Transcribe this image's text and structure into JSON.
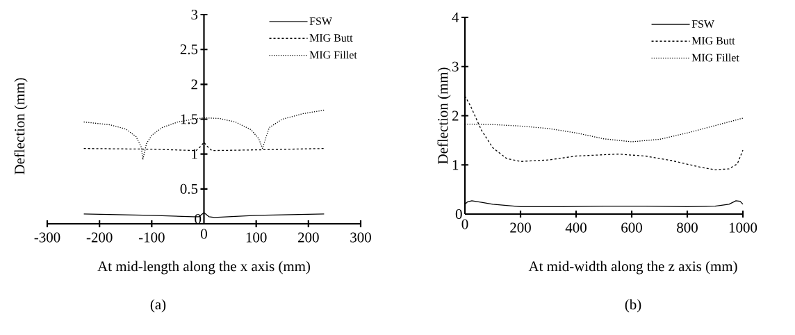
{
  "chart_data": [
    {
      "type": "line",
      "xlabel": "At mid-length along the x axis (mm)",
      "ylabel": "Deflection (mm)",
      "annotations": [
        "(a)"
      ],
      "xlim": [
        -300,
        300
      ],
      "xticks": [
        -300,
        -200,
        -100,
        0,
        100,
        200,
        300
      ],
      "ylim": [
        0,
        3
      ],
      "yticks": [
        0,
        0.5,
        1,
        1.5,
        2,
        2.5,
        3
      ],
      "legend": "top right",
      "series": [
        {
          "name": "FSW",
          "color": "#000000",
          "line_style": "solid",
          "x": [
            -230,
            -100,
            -20,
            -10,
            0,
            10,
            20,
            100,
            230
          ],
          "values": [
            0.14,
            0.12,
            0.1,
            0.1,
            0.16,
            0.1,
            0.09,
            0.12,
            0.14
          ]
        },
        {
          "name": "MIG Butt",
          "color": "#000000",
          "line_style": "dashed",
          "x": [
            -230,
            -100,
            -15,
            -5,
            0,
            5,
            15,
            100,
            230
          ],
          "values": [
            1.08,
            1.07,
            1.05,
            1.12,
            1.17,
            1.12,
            1.05,
            1.06,
            1.08
          ]
        },
        {
          "name": "MIG Fillet",
          "color": "#000000",
          "line_style": "dotted",
          "x": [
            -230,
            -180,
            -150,
            -130,
            -120,
            -117,
            -110,
            -100,
            -80,
            -50,
            -20,
            0,
            30,
            60,
            90,
            105,
            112,
            117,
            125,
            150,
            190,
            230
          ],
          "values": [
            1.46,
            1.42,
            1.36,
            1.25,
            1.1,
            0.92,
            1.15,
            1.27,
            1.38,
            1.46,
            1.5,
            1.52,
            1.51,
            1.46,
            1.35,
            1.22,
            1.08,
            1.2,
            1.38,
            1.5,
            1.58,
            1.63
          ]
        }
      ]
    },
    {
      "type": "line",
      "xlabel": "At mid-width along the z axis  (mm)",
      "ylabel": "Deflection (mm)",
      "annotations": [
        "(b)"
      ],
      "xlim": [
        0,
        1000
      ],
      "xticks": [
        0,
        200,
        400,
        600,
        800,
        1000
      ],
      "ylim": [
        0,
        4
      ],
      "yticks": [
        0,
        1,
        2,
        3,
        4
      ],
      "legend": "top right",
      "series": [
        {
          "name": "FSW",
          "color": "#000000",
          "line_style": "solid",
          "x": [
            0,
            10,
            25,
            60,
            100,
            200,
            350,
            500,
            650,
            800,
            900,
            950,
            975,
            990,
            1000
          ],
          "values": [
            0.2,
            0.25,
            0.27,
            0.24,
            0.2,
            0.15,
            0.15,
            0.16,
            0.16,
            0.15,
            0.16,
            0.2,
            0.27,
            0.26,
            0.2
          ]
        },
        {
          "name": "MIG Butt",
          "color": "#000000",
          "line_style": "dashed",
          "x": [
            0,
            20,
            60,
            100,
            150,
            200,
            300,
            400,
            550,
            650,
            750,
            850,
            900,
            950,
            980,
            1000
          ],
          "values": [
            2.4,
            2.2,
            1.7,
            1.35,
            1.13,
            1.07,
            1.1,
            1.18,
            1.22,
            1.18,
            1.08,
            0.95,
            0.9,
            0.92,
            1.02,
            1.3
          ]
        },
        {
          "name": "MIG Fillet",
          "color": "#000000",
          "line_style": "dotted",
          "x": [
            0,
            100,
            200,
            300,
            400,
            500,
            600,
            700,
            800,
            900,
            1000
          ],
          "values": [
            1.83,
            1.82,
            1.79,
            1.74,
            1.65,
            1.53,
            1.47,
            1.52,
            1.65,
            1.8,
            1.95
          ]
        }
      ]
    }
  ]
}
